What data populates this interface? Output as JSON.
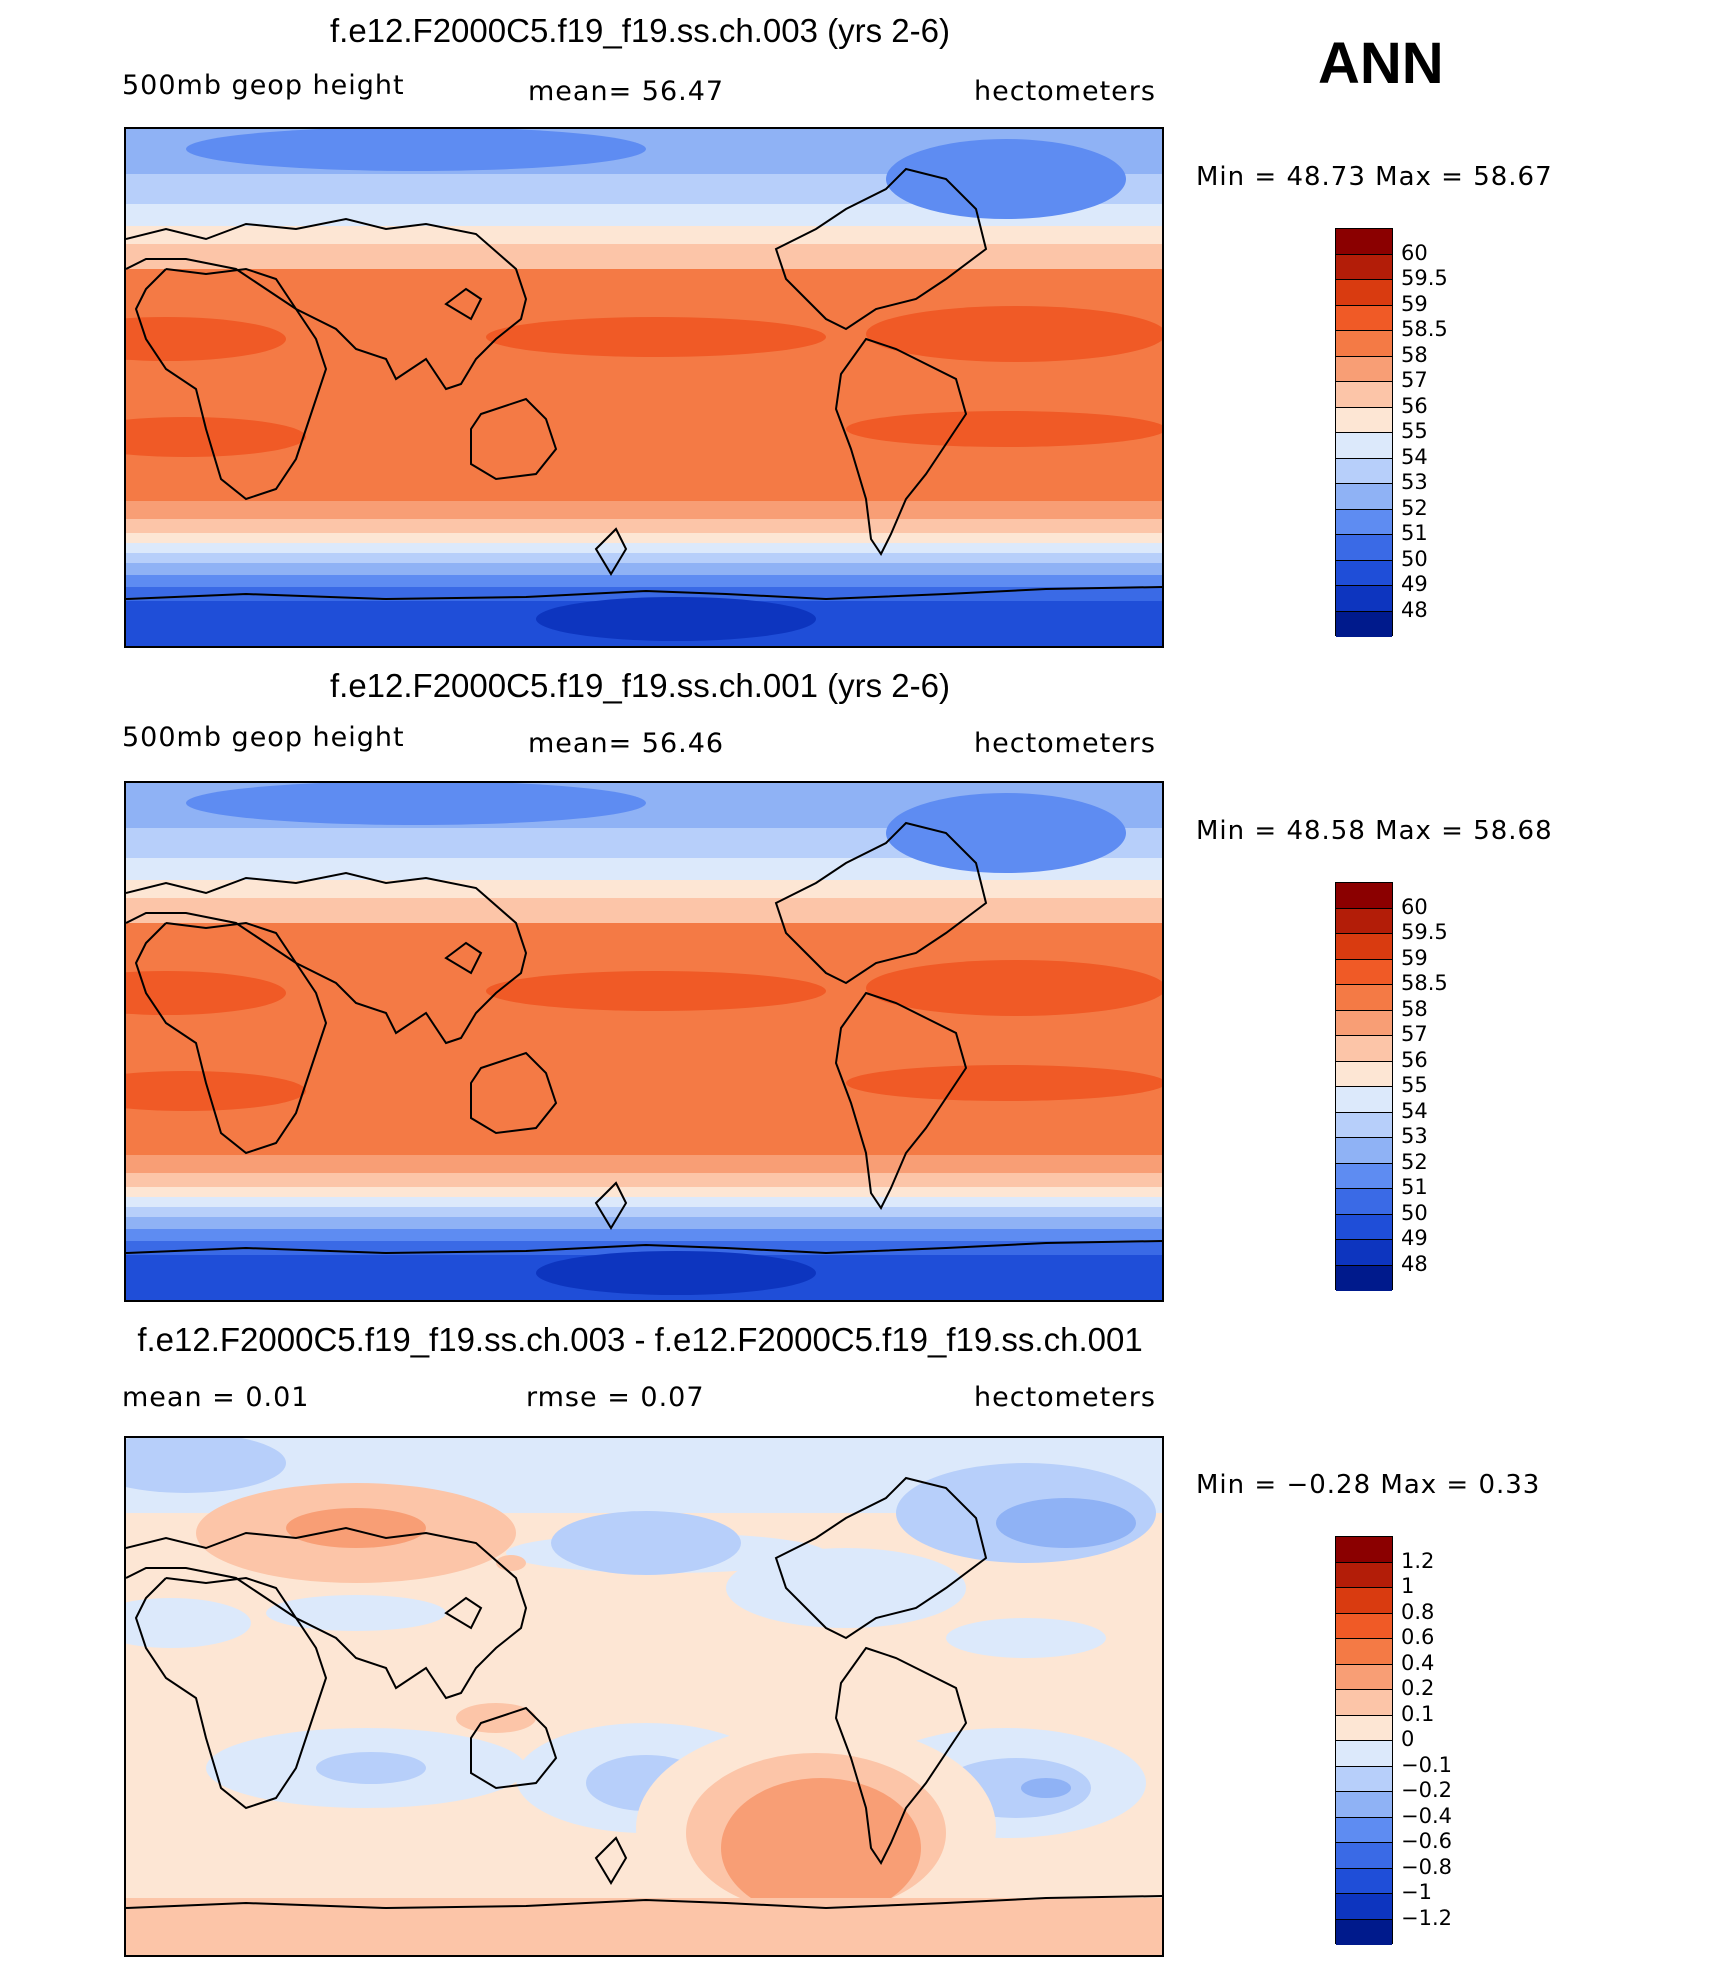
{
  "season": "ANN",
  "chart_data": [
    {
      "type": "heatmap",
      "title": "f.e12.F2000C5.f19_f19.ss.ch.003 (yrs 2-6)",
      "left_label": "500mb geop height",
      "center_label": "mean=  56.47",
      "right_label": "hectometers",
      "min_text": "Min =   48.73 Max =   58.67",
      "min": 48.73,
      "max": 58.67,
      "mean": 56.47,
      "colorbar_labels": [
        "60",
        "59.5",
        "59",
        "58.5",
        "58",
        "57",
        "56",
        "55",
        "54",
        "53",
        "52",
        "51",
        "50",
        "49",
        "48"
      ],
      "colorbar_colors": [
        "#8b0000",
        "#b31d08",
        "#d93b10",
        "#f05a26",
        "#f47a45",
        "#f89e75",
        "#fcc5a8",
        "#fde6d4",
        "#dce9fb",
        "#b7cffa",
        "#8fb2f5",
        "#5e8cf2",
        "#3a6ae6",
        "#1f4ed8",
        "#0d35bf",
        "#001a8c"
      ]
    },
    {
      "type": "heatmap",
      "title": "f.e12.F2000C5.f19_f19.ss.ch.001 (yrs 2-6)",
      "left_label": "500mb geop height",
      "center_label": "mean=  56.46",
      "right_label": "hectometers",
      "min_text": "Min =   48.58 Max =   58.68",
      "min": 48.58,
      "max": 58.68,
      "mean": 56.46,
      "colorbar_labels": [
        "60",
        "59.5",
        "59",
        "58.5",
        "58",
        "57",
        "56",
        "55",
        "54",
        "53",
        "52",
        "51",
        "50",
        "49",
        "48"
      ],
      "colorbar_colors": [
        "#8b0000",
        "#b31d08",
        "#d93b10",
        "#f05a26",
        "#f47a45",
        "#f89e75",
        "#fcc5a8",
        "#fde6d4",
        "#dce9fb",
        "#b7cffa",
        "#8fb2f5",
        "#5e8cf2",
        "#3a6ae6",
        "#1f4ed8",
        "#0d35bf",
        "#001a8c"
      ]
    },
    {
      "type": "heatmap",
      "title": "f.e12.F2000C5.f19_f19.ss.ch.003 - f.e12.F2000C5.f19_f19.ss.ch.001",
      "left_label": "mean =    0.01",
      "center_label": "rmse =    0.07",
      "right_label": "hectometers",
      "min_text": "Min =   −0.28 Max =    0.33",
      "min": -0.28,
      "max": 0.33,
      "mean": 0.01,
      "rmse": 0.07,
      "colorbar_labels": [
        "1.2",
        "1",
        "0.8",
        "0.6",
        "0.4",
        "0.2",
        "0.1",
        "0",
        "−0.1",
        "−0.2",
        "−0.4",
        "−0.6",
        "−0.8",
        "−1",
        "−1.2"
      ],
      "colorbar_colors": [
        "#8b0000",
        "#b31d08",
        "#d93b10",
        "#f05a26",
        "#f47a45",
        "#f89e75",
        "#fcc5a8",
        "#fde6d4",
        "#dce9fb",
        "#b7cffa",
        "#8fb2f5",
        "#5e8cf2",
        "#3a6ae6",
        "#1f4ed8",
        "#0d35bf",
        "#001a8c"
      ]
    }
  ]
}
